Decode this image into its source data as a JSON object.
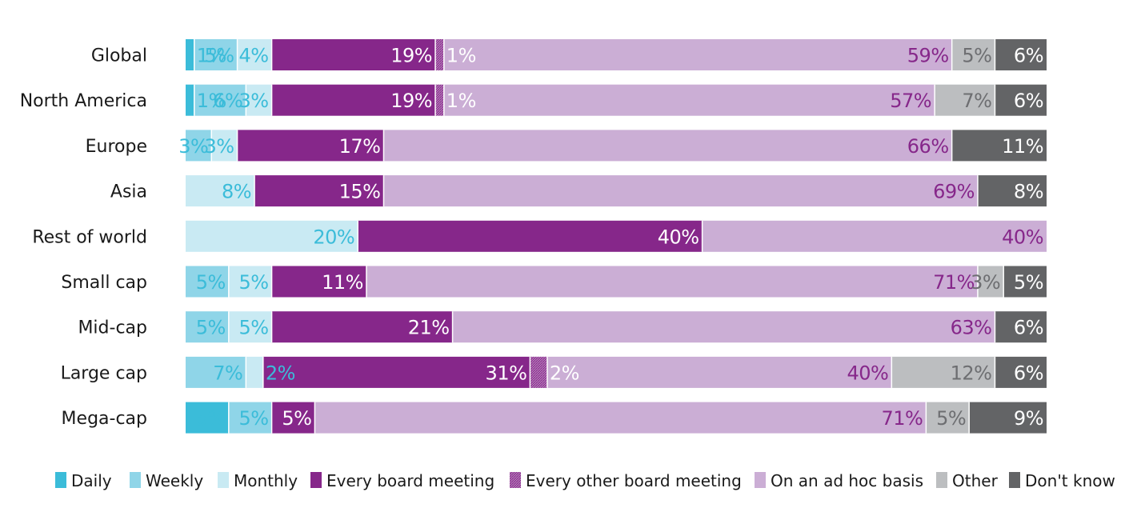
{
  "chart_data": {
    "type": "bar",
    "orientation": "horizontal",
    "stacked": "100%",
    "categories": [
      "Global",
      "North America",
      "Europe",
      "Asia",
      "Rest of world",
      "Small cap",
      "Mid-cap",
      "Large cap",
      "Mega-cap"
    ],
    "series": [
      {
        "name": "Daily",
        "color": "#3bbcd9",
        "label_color": "#3bbcd9",
        "values": [
          1,
          1,
          null,
          null,
          null,
          null,
          null,
          null,
          5
        ]
      },
      {
        "name": "Weekly",
        "color": "#8fd5e8",
        "label_color": "#3bbcd9",
        "values": [
          5,
          6,
          3,
          null,
          null,
          5,
          5,
          7,
          5
        ]
      },
      {
        "name": "Monthly",
        "color": "#c9eaf3",
        "label_color": "#3bbcd9",
        "values": [
          4,
          3,
          3,
          8,
          20,
          5,
          5,
          2,
          null
        ]
      },
      {
        "name": "Every board meeting",
        "color": "#86278a",
        "label_color": "#ffffff",
        "values": [
          19,
          19,
          17,
          15,
          40,
          11,
          21,
          31,
          5
        ]
      },
      {
        "name": "Every other board meeting",
        "color": "#a05aa6",
        "pattern": "hatched",
        "label_color": "#ffffff",
        "values": [
          1,
          1,
          null,
          null,
          null,
          null,
          null,
          2,
          null
        ]
      },
      {
        "name": "On an ad hoc basis",
        "color": "#cbaed5",
        "label_color": "#86278a",
        "values": [
          59,
          57,
          66,
          69,
          40,
          71,
          63,
          40,
          71
        ]
      },
      {
        "name": "Other",
        "color": "#bcbec0",
        "label_color": "#6d6e71",
        "values": [
          5,
          7,
          null,
          null,
          null,
          3,
          null,
          12,
          5
        ]
      },
      {
        "name": "Don't know",
        "color": "#636466",
        "label_color": "#ffffff",
        "values": [
          6,
          6,
          11,
          8,
          null,
          5,
          6,
          6,
          9
        ]
      }
    ],
    "value_suffix": "%",
    "xlim": [
      0,
      100
    ],
    "legend": "bottom",
    "grid": false,
    "title": "",
    "xlabel": "",
    "ylabel": ""
  }
}
